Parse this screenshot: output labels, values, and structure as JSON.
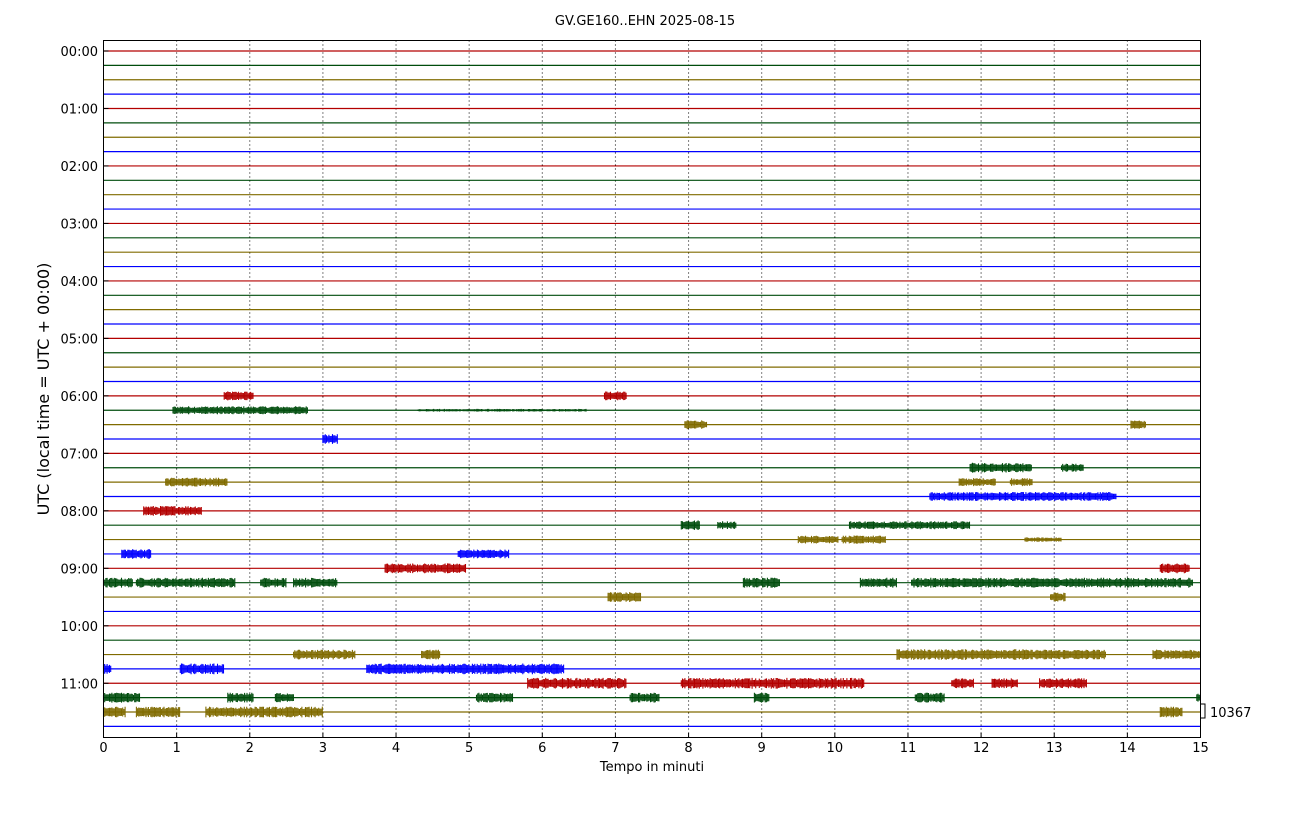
{
  "chart_data": {
    "type": "line",
    "title": "GV.GE160..EHN 2025-08-15",
    "xlabel": "Tempo in minuti",
    "ylabel": "UTC (local time = UTC + 00:00)",
    "xlim": [
      0,
      15
    ],
    "x_ticks": [
      "0",
      "1",
      "2",
      "3",
      "4",
      "5",
      "6",
      "7",
      "8",
      "9",
      "10",
      "11",
      "12",
      "13",
      "14",
      "15"
    ],
    "y_ticks": [
      "00:00",
      "01:00",
      "02:00",
      "03:00",
      "04:00",
      "05:00",
      "06:00",
      "07:00",
      "08:00",
      "09:00",
      "10:00",
      "11:00"
    ],
    "grid": "vertical dotted",
    "scale_label": "10367",
    "trace_colors": [
      "#b30000",
      "#004d0d",
      "#806b00",
      "#0000ff"
    ],
    "rows": [
      {
        "time": "00:00",
        "color_index": 0,
        "bursts": []
      },
      {
        "time": "00:15",
        "color_index": 1,
        "bursts": []
      },
      {
        "time": "00:30",
        "color_index": 2,
        "bursts": []
      },
      {
        "time": "00:45",
        "color_index": 3,
        "bursts": []
      },
      {
        "time": "01:00",
        "color_index": 0,
        "bursts": []
      },
      {
        "time": "01:15",
        "color_index": 1,
        "bursts": []
      },
      {
        "time": "01:30",
        "color_index": 2,
        "bursts": []
      },
      {
        "time": "01:45",
        "color_index": 3,
        "bursts": []
      },
      {
        "time": "02:00",
        "color_index": 0,
        "bursts": []
      },
      {
        "time": "02:15",
        "color_index": 1,
        "bursts": []
      },
      {
        "time": "02:30",
        "color_index": 2,
        "bursts": []
      },
      {
        "time": "02:45",
        "color_index": 3,
        "bursts": []
      },
      {
        "time": "03:00",
        "color_index": 0,
        "bursts": []
      },
      {
        "time": "03:15",
        "color_index": 1,
        "bursts": []
      },
      {
        "time": "03:30",
        "color_index": 2,
        "bursts": []
      },
      {
        "time": "03:45",
        "color_index": 3,
        "bursts": []
      },
      {
        "time": "04:00",
        "color_index": 0,
        "bursts": []
      },
      {
        "time": "04:15",
        "color_index": 1,
        "bursts": []
      },
      {
        "time": "04:30",
        "color_index": 2,
        "bursts": []
      },
      {
        "time": "04:45",
        "color_index": 3,
        "bursts": []
      },
      {
        "time": "05:00",
        "color_index": 0,
        "bursts": []
      },
      {
        "time": "05:15",
        "color_index": 1,
        "bursts": []
      },
      {
        "time": "05:30",
        "color_index": 2,
        "bursts": []
      },
      {
        "time": "05:45",
        "color_index": 3,
        "bursts": []
      },
      {
        "time": "06:00",
        "color_index": 0,
        "bursts": [
          [
            1.65,
            2.05,
            0.5
          ],
          [
            6.85,
            7.15,
            0.5
          ]
        ]
      },
      {
        "time": "06:15",
        "color_index": 1,
        "bursts": [
          [
            0.95,
            2.8,
            0.45
          ],
          [
            4.3,
            6.6,
            0.15
          ]
        ]
      },
      {
        "time": "06:30",
        "color_index": 2,
        "bursts": [
          [
            7.95,
            8.25,
            0.5
          ],
          [
            14.05,
            14.25,
            0.45
          ]
        ]
      },
      {
        "time": "06:45",
        "color_index": 3,
        "bursts": [
          [
            3.0,
            3.2,
            0.55
          ]
        ]
      },
      {
        "time": "07:00",
        "color_index": 0,
        "bursts": []
      },
      {
        "time": "07:15",
        "color_index": 1,
        "bursts": [
          [
            11.85,
            12.7,
            0.55
          ],
          [
            13.1,
            13.4,
            0.45
          ]
        ]
      },
      {
        "time": "07:30",
        "color_index": 2,
        "bursts": [
          [
            0.85,
            1.7,
            0.5
          ],
          [
            11.7,
            12.2,
            0.45
          ],
          [
            12.4,
            12.7,
            0.45
          ]
        ]
      },
      {
        "time": "07:45",
        "color_index": 3,
        "bursts": [
          [
            11.3,
            13.85,
            0.5
          ]
        ]
      },
      {
        "time": "08:00",
        "color_index": 0,
        "bursts": [
          [
            0.55,
            1.35,
            0.55
          ]
        ]
      },
      {
        "time": "08:15",
        "color_index": 1,
        "bursts": [
          [
            7.9,
            8.15,
            0.55
          ],
          [
            8.4,
            8.65,
            0.45
          ],
          [
            10.2,
            11.85,
            0.45
          ]
        ]
      },
      {
        "time": "08:30",
        "color_index": 2,
        "bursts": [
          [
            9.5,
            10.05,
            0.45
          ],
          [
            10.1,
            10.7,
            0.45
          ],
          [
            12.6,
            13.1,
            0.25
          ]
        ]
      },
      {
        "time": "08:45",
        "color_index": 3,
        "bursts": [
          [
            0.25,
            0.65,
            0.55
          ],
          [
            4.85,
            5.55,
            0.5
          ]
        ]
      },
      {
        "time": "09:00",
        "color_index": 0,
        "bursts": [
          [
            3.85,
            4.95,
            0.55
          ],
          [
            14.45,
            14.85,
            0.55
          ]
        ]
      },
      {
        "time": "09:15",
        "color_index": 1,
        "bursts": [
          [
            0.0,
            0.4,
            0.55
          ],
          [
            0.45,
            1.8,
            0.55
          ],
          [
            2.15,
            2.5,
            0.55
          ],
          [
            2.6,
            3.2,
            0.55
          ],
          [
            8.75,
            9.25,
            0.55
          ],
          [
            10.35,
            10.85,
            0.55
          ],
          [
            11.05,
            14.9,
            0.55
          ]
        ]
      },
      {
        "time": "09:30",
        "color_index": 2,
        "bursts": [
          [
            6.9,
            7.35,
            0.55
          ],
          [
            12.95,
            13.15,
            0.5
          ]
        ]
      },
      {
        "time": "09:45",
        "color_index": 3,
        "bursts": []
      },
      {
        "time": "10:00",
        "color_index": 0,
        "bursts": []
      },
      {
        "time": "10:15",
        "color_index": 1,
        "bursts": []
      },
      {
        "time": "10:30",
        "color_index": 2,
        "bursts": [
          [
            2.6,
            3.45,
            0.55
          ],
          [
            4.35,
            4.6,
            0.55
          ],
          [
            10.85,
            12.6,
            0.6
          ],
          [
            12.6,
            13.7,
            0.55
          ],
          [
            14.35,
            15.0,
            0.55
          ]
        ]
      },
      {
        "time": "10:45",
        "color_index": 3,
        "bursts": [
          [
            0.0,
            0.1,
            0.55
          ],
          [
            1.05,
            1.65,
            0.6
          ],
          [
            3.6,
            6.3,
            0.6
          ]
        ]
      },
      {
        "time": "11:00",
        "color_index": 0,
        "bursts": [
          [
            5.8,
            6.7,
            0.6
          ],
          [
            6.7,
            7.15,
            0.6
          ],
          [
            7.9,
            10.4,
            0.6
          ],
          [
            11.6,
            11.9,
            0.55
          ],
          [
            12.15,
            12.5,
            0.55
          ],
          [
            12.8,
            13.45,
            0.55
          ]
        ]
      },
      {
        "time": "11:15",
        "color_index": 1,
        "bursts": [
          [
            0.0,
            0.5,
            0.55
          ],
          [
            1.7,
            2.05,
            0.55
          ],
          [
            2.35,
            2.6,
            0.55
          ],
          [
            5.1,
            5.6,
            0.55
          ],
          [
            7.2,
            7.6,
            0.55
          ],
          [
            8.9,
            9.1,
            0.55
          ],
          [
            11.1,
            11.5,
            0.55
          ],
          [
            14.95,
            15.0,
            0.55
          ]
        ]
      },
      {
        "time": "11:30",
        "color_index": 2,
        "bursts": [
          [
            0.0,
            0.3,
            0.6
          ],
          [
            0.45,
            1.05,
            0.6
          ],
          [
            1.4,
            3.0,
            0.6
          ],
          [
            14.45,
            14.75,
            0.6
          ]
        ]
      },
      {
        "time": "11:45",
        "color_index": 3,
        "bursts": []
      }
    ]
  }
}
